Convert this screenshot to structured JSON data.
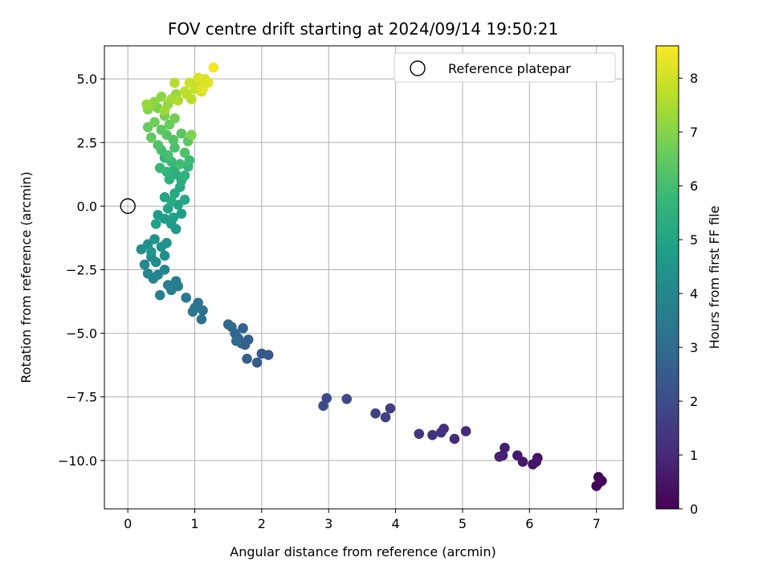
{
  "chart_data": {
    "type": "scatter",
    "title": "FOV centre drift starting at 2024/09/14 19:50:21",
    "xlabel": "Angular distance from reference (arcmin)",
    "ylabel": "Rotation from reference (arcmin)",
    "xlim": [
      -0.35,
      7.4
    ],
    "ylim": [
      -11.9,
      6.3
    ],
    "xticks": [
      0,
      1,
      2,
      3,
      4,
      5,
      6,
      7
    ],
    "xtick_labels": [
      "0",
      "1",
      "2",
      "3",
      "4",
      "5",
      "6",
      "7"
    ],
    "yticks": [
      5,
      2.5,
      0,
      -2.5,
      -5,
      -7.5,
      -10
    ],
    "ytick_labels": [
      "5.0",
      "2.5",
      "0.0",
      "−2.5",
      "−5.0",
      "−7.5",
      "−10.0"
    ],
    "grid": true,
    "legend": {
      "placement": "top-right",
      "entries": [
        "Reference platepar"
      ]
    },
    "reference_point": {
      "x": 0,
      "y": 0
    },
    "colorbar": {
      "label": "Hours from first FF file",
      "range": [
        0,
        8.6
      ],
      "ticks": [
        0,
        1,
        2,
        3,
        4,
        5,
        6,
        7,
        8
      ],
      "tick_labels": [
        "0",
        "1",
        "2",
        "3",
        "4",
        "5",
        "6",
        "7",
        "8"
      ],
      "colormap": [
        "#440154",
        "#482878",
        "#3e4989",
        "#31688e",
        "#26828e",
        "#1f9e89",
        "#35b779",
        "#6ece58",
        "#b5de2b",
        "#fde725"
      ]
    },
    "series": [
      {
        "points": [
          {
            "x": 7.0,
            "y": -11.0,
            "h": 0.05
          },
          {
            "x": 7.05,
            "y": -10.85,
            "h": 0.1
          },
          {
            "x": 7.03,
            "y": -10.65,
            "h": 0.15
          },
          {
            "x": 7.08,
            "y": -10.8,
            "h": 0.2
          },
          {
            "x": 6.12,
            "y": -9.9,
            "h": 0.4
          },
          {
            "x": 6.05,
            "y": -10.15,
            "h": 0.45
          },
          {
            "x": 6.1,
            "y": -10.05,
            "h": 0.5
          },
          {
            "x": 5.9,
            "y": -10.05,
            "h": 0.55
          },
          {
            "x": 5.82,
            "y": -9.8,
            "h": 0.6
          },
          {
            "x": 5.63,
            "y": -9.5,
            "h": 0.7
          },
          {
            "x": 5.6,
            "y": -9.8,
            "h": 0.75
          },
          {
            "x": 5.55,
            "y": -9.85,
            "h": 0.8
          },
          {
            "x": 5.05,
            "y": -8.85,
            "h": 1.0
          },
          {
            "x": 4.88,
            "y": -9.15,
            "h": 1.1
          },
          {
            "x": 4.72,
            "y": -8.75,
            "h": 1.15
          },
          {
            "x": 4.68,
            "y": -8.9,
            "h": 1.2
          },
          {
            "x": 4.55,
            "y": -9.0,
            "h": 1.25
          },
          {
            "x": 4.35,
            "y": -8.95,
            "h": 1.4
          },
          {
            "x": 3.92,
            "y": -7.95,
            "h": 1.6
          },
          {
            "x": 3.85,
            "y": -8.3,
            "h": 1.65
          },
          {
            "x": 3.7,
            "y": -8.15,
            "h": 1.7
          },
          {
            "x": 3.27,
            "y": -7.58,
            "h": 1.85
          },
          {
            "x": 2.97,
            "y": -7.55,
            "h": 1.95
          },
          {
            "x": 2.92,
            "y": -7.85,
            "h": 2.0
          },
          {
            "x": 2.1,
            "y": -5.85,
            "h": 2.4
          },
          {
            "x": 2.0,
            "y": -5.8,
            "h": 2.45
          },
          {
            "x": 1.93,
            "y": -6.15,
            "h": 2.5
          },
          {
            "x": 1.78,
            "y": -6.0,
            "h": 2.55
          },
          {
            "x": 1.8,
            "y": -5.25,
            "h": 2.6
          },
          {
            "x": 1.75,
            "y": -5.45,
            "h": 2.65
          },
          {
            "x": 1.7,
            "y": -5.4,
            "h": 2.7
          },
          {
            "x": 1.72,
            "y": -4.8,
            "h": 2.75
          },
          {
            "x": 1.65,
            "y": -5.2,
            "h": 2.8
          },
          {
            "x": 1.6,
            "y": -5.0,
            "h": 2.85
          },
          {
            "x": 1.55,
            "y": -4.75,
            "h": 2.9
          },
          {
            "x": 1.5,
            "y": -4.65,
            "h": 2.95
          },
          {
            "x": 1.62,
            "y": -5.3,
            "h": 3.0
          },
          {
            "x": 1.1,
            "y": -4.45,
            "h": 3.2
          },
          {
            "x": 1.12,
            "y": -4.1,
            "h": 3.25
          },
          {
            "x": 1.05,
            "y": -3.8,
            "h": 3.3
          },
          {
            "x": 1.0,
            "y": -4.0,
            "h": 3.35
          },
          {
            "x": 0.97,
            "y": -4.15,
            "h": 3.4
          },
          {
            "x": 0.87,
            "y": -3.6,
            "h": 3.5
          },
          {
            "x": 0.75,
            "y": -3.15,
            "h": 3.6
          },
          {
            "x": 0.72,
            "y": -2.95,
            "h": 3.65
          },
          {
            "x": 0.65,
            "y": -3.3,
            "h": 3.7
          },
          {
            "x": 0.6,
            "y": -3.1,
            "h": 3.75
          },
          {
            "x": 0.48,
            "y": -3.5,
            "h": 3.8
          },
          {
            "x": 0.38,
            "y": -2.85,
            "h": 3.85
          },
          {
            "x": 0.45,
            "y": -2.7,
            "h": 3.9
          },
          {
            "x": 0.3,
            "y": -2.65,
            "h": 3.95
          },
          {
            "x": 0.55,
            "y": -2.5,
            "h": 4.0
          },
          {
            "x": 0.25,
            "y": -2.3,
            "h": 4.05
          },
          {
            "x": 0.35,
            "y": -2.0,
            "h": 4.1
          },
          {
            "x": 0.2,
            "y": -1.7,
            "h": 4.15
          },
          {
            "x": 0.42,
            "y": -2.2,
            "h": 4.2
          },
          {
            "x": 0.55,
            "y": -1.95,
            "h": 4.25
          },
          {
            "x": 0.3,
            "y": -1.5,
            "h": 4.3
          },
          {
            "x": 0.5,
            "y": -1.6,
            "h": 4.35
          },
          {
            "x": 0.4,
            "y": -1.3,
            "h": 4.4
          },
          {
            "x": 0.58,
            "y": -1.45,
            "h": 4.45
          },
          {
            "x": 0.35,
            "y": -1.8,
            "h": 4.5
          },
          {
            "x": 0.72,
            "y": -0.9,
            "h": 4.6
          },
          {
            "x": 0.65,
            "y": -0.7,
            "h": 4.65
          },
          {
            "x": 0.55,
            "y": -0.5,
            "h": 4.7
          },
          {
            "x": 0.45,
            "y": -0.35,
            "h": 4.75
          },
          {
            "x": 0.8,
            "y": -0.3,
            "h": 4.8
          },
          {
            "x": 0.68,
            "y": -0.45,
            "h": 4.85
          },
          {
            "x": 0.42,
            "y": -0.7,
            "h": 4.9
          },
          {
            "x": 0.6,
            "y": -0.1,
            "h": 4.95
          },
          {
            "x": 0.75,
            "y": 0.05,
            "h": 5.0
          },
          {
            "x": 0.55,
            "y": 0.35,
            "h": 5.05
          },
          {
            "x": 0.85,
            "y": 0.25,
            "h": 5.1
          },
          {
            "x": 0.7,
            "y": 0.5,
            "h": 5.15
          },
          {
            "x": 0.78,
            "y": 0.75,
            "h": 5.2
          },
          {
            "x": 0.65,
            "y": 0.2,
            "h": 5.25
          },
          {
            "x": 0.8,
            "y": 1.0,
            "h": 5.35
          },
          {
            "x": 0.72,
            "y": 1.25,
            "h": 5.4
          },
          {
            "x": 0.62,
            "y": 1.05,
            "h": 5.45
          },
          {
            "x": 0.85,
            "y": 1.2,
            "h": 5.5
          },
          {
            "x": 0.7,
            "y": 1.5,
            "h": 5.55
          },
          {
            "x": 0.58,
            "y": 1.35,
            "h": 5.6
          },
          {
            "x": 0.9,
            "y": 1.55,
            "h": 5.65
          },
          {
            "x": 0.55,
            "y": 1.9,
            "h": 5.7
          },
          {
            "x": 0.48,
            "y": 1.5,
            "h": 5.75
          },
          {
            "x": 0.65,
            "y": 1.75,
            "h": 5.8
          },
          {
            "x": 0.92,
            "y": 1.8,
            "h": 5.85
          },
          {
            "x": 0.78,
            "y": 1.65,
            "h": 5.9
          },
          {
            "x": 0.5,
            "y": 2.2,
            "h": 6.0
          },
          {
            "x": 0.6,
            "y": 2.0,
            "h": 6.05
          },
          {
            "x": 0.7,
            "y": 2.3,
            "h": 6.1
          },
          {
            "x": 0.85,
            "y": 2.1,
            "h": 6.15
          },
          {
            "x": 0.45,
            "y": 2.4,
            "h": 6.2
          },
          {
            "x": 0.68,
            "y": 2.6,
            "h": 6.25
          },
          {
            "x": 0.58,
            "y": 2.8,
            "h": 6.3
          },
          {
            "x": 0.8,
            "y": 2.85,
            "h": 6.35
          },
          {
            "x": 0.9,
            "y": 2.55,
            "h": 6.4
          },
          {
            "x": 0.5,
            "y": 3.0,
            "h": 6.45
          },
          {
            "x": 0.35,
            "y": 2.7,
            "h": 6.5
          },
          {
            "x": 0.3,
            "y": 3.1,
            "h": 6.55
          },
          {
            "x": 0.62,
            "y": 3.2,
            "h": 6.6
          },
          {
            "x": 0.4,
            "y": 3.3,
            "h": 6.7
          },
          {
            "x": 0.7,
            "y": 3.45,
            "h": 6.75
          },
          {
            "x": 0.55,
            "y": 3.55,
            "h": 6.8
          },
          {
            "x": 0.45,
            "y": 3.85,
            "h": 6.85
          },
          {
            "x": 0.95,
            "y": 2.8,
            "h": 6.9
          },
          {
            "x": 0.3,
            "y": 3.8,
            "h": 7.0
          },
          {
            "x": 0.4,
            "y": 4.1,
            "h": 7.05
          },
          {
            "x": 0.5,
            "y": 4.3,
            "h": 7.1
          },
          {
            "x": 0.35,
            "y": 3.95,
            "h": 7.15
          },
          {
            "x": 0.6,
            "y": 4.0,
            "h": 7.2
          },
          {
            "x": 0.72,
            "y": 4.4,
            "h": 7.25
          },
          {
            "x": 0.28,
            "y": 4.0,
            "h": 7.3
          },
          {
            "x": 0.55,
            "y": 3.75,
            "h": 7.35
          },
          {
            "x": 0.65,
            "y": 4.2,
            "h": 7.4
          },
          {
            "x": 0.75,
            "y": 4.15,
            "h": 7.55
          },
          {
            "x": 0.88,
            "y": 4.4,
            "h": 7.6
          },
          {
            "x": 0.7,
            "y": 4.85,
            "h": 7.65
          },
          {
            "x": 0.95,
            "y": 4.2,
            "h": 7.7
          },
          {
            "x": 0.85,
            "y": 4.5,
            "h": 7.75
          },
          {
            "x": 1.0,
            "y": 4.6,
            "h": 7.85
          },
          {
            "x": 0.92,
            "y": 4.85,
            "h": 7.9
          },
          {
            "x": 1.05,
            "y": 4.75,
            "h": 7.95
          },
          {
            "x": 1.1,
            "y": 4.5,
            "h": 8.0
          },
          {
            "x": 1.15,
            "y": 5.0,
            "h": 8.1
          },
          {
            "x": 1.05,
            "y": 5.05,
            "h": 8.15
          },
          {
            "x": 1.2,
            "y": 4.85,
            "h": 8.2
          },
          {
            "x": 1.12,
            "y": 4.6,
            "h": 8.25
          },
          {
            "x": 1.28,
            "y": 5.45,
            "h": 8.5
          }
        ]
      }
    ]
  }
}
